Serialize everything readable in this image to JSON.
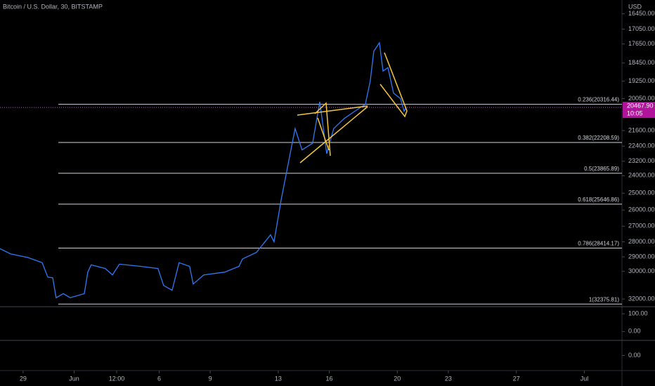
{
  "chart_data": {
    "type": "line",
    "title": "Bitcoin / U.S. Dollar, 30, BITSTAMP",
    "currency": "USD",
    "log_scale": true,
    "inverted": true,
    "color": "#3179f5",
    "x": [
      -1.36,
      -0.74,
      0.29,
      1.12,
      1.45,
      1.74,
      1.94,
      2.36,
      2.77,
      3.6,
      3.8,
      4.0,
      4.83,
      5.25,
      5.66,
      6.9,
      7.93,
      8.26,
      8.76,
      9.17,
      9.79,
      10.0,
      10.62,
      11.86,
      12.69,
      12.89,
      13.72,
      14.55,
      14.75,
      15.17,
      15.58,
      15.99,
      16.4,
      17.02,
      17.44,
      17.85,
      18.26,
      18.88,
      19.5,
      20.12,
      20.41,
      20.62,
      20.95,
      21.16,
      21.45,
      21.78,
      22.19,
      22.4,
      22.52
    ],
    "values": [
      28450,
      28800,
      29050,
      29400,
      30400,
      30450,
      31900,
      31600,
      31900,
      31600,
      30050,
      29550,
      29800,
      30250,
      29500,
      29650,
      29800,
      31000,
      31350,
      29400,
      29650,
      30900,
      30250,
      30050,
      29650,
      29150,
      28700,
      27550,
      28000,
      25400,
      23350,
      21500,
      22600,
      22250,
      20200,
      22800,
      21500,
      21000,
      20650,
      20320,
      19250,
      17950,
      17600,
      18800,
      18650,
      19800,
      20050,
      20650,
      20468
    ],
    "xlim": [
      -1.36,
      35.21
    ],
    "xticks": [
      {
        "value": 0,
        "label": "29"
      },
      {
        "value": 3,
        "label": "Jun"
      },
      {
        "value": 5.5,
        "label": "12:00"
      },
      {
        "value": 8,
        "label": "6"
      },
      {
        "value": 11,
        "label": "9"
      },
      {
        "value": 15,
        "label": "13"
      },
      {
        "value": 18,
        "label": "16"
      },
      {
        "value": 22,
        "label": "20"
      },
      {
        "value": 25,
        "label": "23"
      },
      {
        "value": 29,
        "label": "27"
      },
      {
        "value": 33,
        "label": "Jul"
      }
    ],
    "ylim": [
      15930,
      32470
    ],
    "yticks": [
      {
        "value": 16450,
        "label": "16450.00"
      },
      {
        "value": 17050,
        "label": "17050.00"
      },
      {
        "value": 17650,
        "label": "17650.00"
      },
      {
        "value": 18450,
        "label": "18450.00"
      },
      {
        "value": 19250,
        "label": "19250.00"
      },
      {
        "value": 20050,
        "label": "20050.00"
      },
      {
        "value": 21600,
        "label": "21600.00"
      },
      {
        "value": 22400,
        "label": "22400.00"
      },
      {
        "value": 23200,
        "label": "23200.00"
      },
      {
        "value": 24000,
        "label": "24000.00"
      },
      {
        "value": 25000,
        "label": "25000.00"
      },
      {
        "value": 26000,
        "label": "26000.00"
      },
      {
        "value": 27000,
        "label": "27000.00"
      },
      {
        "value": 28000,
        "label": "28000.00"
      },
      {
        "value": 29000,
        "label": "29000.00"
      },
      {
        "value": 30000,
        "label": "30000.00"
      },
      {
        "value": 32000,
        "label": "32000.00"
      }
    ],
    "last_price": {
      "value": 20467.9,
      "label": "20467.90"
    },
    "countdown": "10:05",
    "fib_levels": [
      {
        "label": "0.236(20316.44)",
        "price": 20316.44
      },
      {
        "label": "0.382(22208.59)",
        "price": 22208.59
      },
      {
        "label": "0.5(23865.89)",
        "price": 23865.89
      },
      {
        "label": "0.618(25646.86)",
        "price": 25646.86
      },
      {
        "label": "0.786(28414.17)",
        "price": 28414.17
      },
      {
        "label": "1(32375.81)",
        "price": 32375.81
      }
    ],
    "indicator_panes": [
      {
        "ylim": [
          -50,
          140
        ],
        "yticks": [
          {
            "value": 100,
            "label": "100.00"
          },
          {
            "value": 0,
            "label": "0.00"
          }
        ]
      },
      {
        "ylim": [
          -1,
          1
        ],
        "yticks": [
          {
            "value": 0,
            "label": "0.00"
          }
        ]
      }
    ]
  }
}
